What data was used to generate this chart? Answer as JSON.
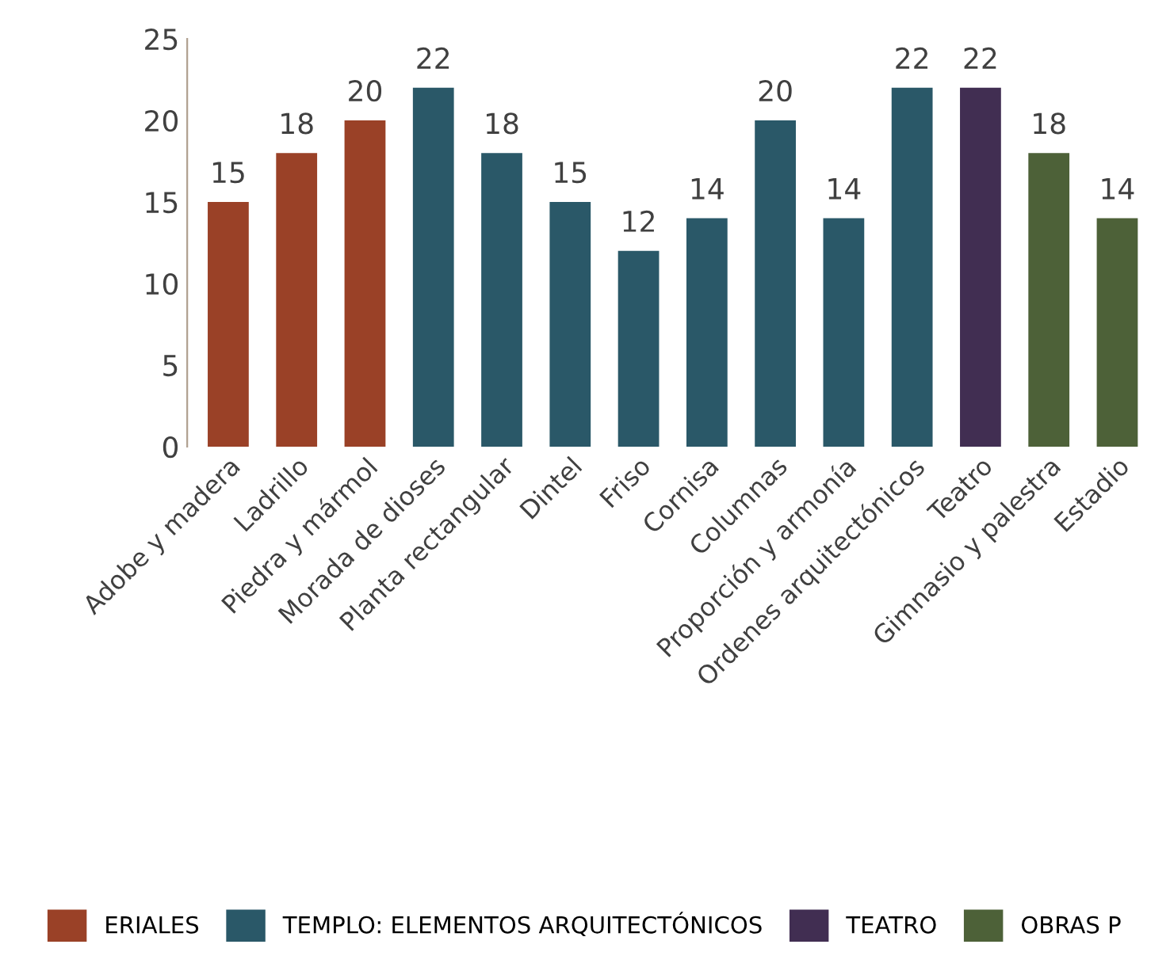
{
  "chart_data": {
    "type": "bar",
    "categories": [
      "Adobe y madera",
      "Ladrillo",
      "Piedra y mármol",
      "Morada de dioses",
      "Planta rectangular",
      "Dintel",
      "Friso",
      "Cornisa",
      "Columnas",
      "Proporción y armonía",
      "Ordenes arquitectónicos",
      "Teatro",
      "Gimnasio y palestra",
      "Estadio"
    ],
    "series": [
      {
        "name": "ERIALES",
        "color": "#9a4127",
        "values": [
          15,
          18,
          20,
          null,
          null,
          null,
          null,
          null,
          null,
          null,
          null,
          null,
          null,
          null
        ]
      },
      {
        "name": "TEMPLO: ELEMENTOS ARQUITECTÓNICOS",
        "color": "#2a5868",
        "values": [
          null,
          null,
          null,
          22,
          18,
          15,
          12,
          14,
          20,
          14,
          22,
          null,
          null,
          null
        ]
      },
      {
        "name": "TEATRO",
        "color": "#412e52",
        "values": [
          null,
          null,
          null,
          null,
          null,
          null,
          null,
          null,
          null,
          null,
          null,
          22,
          null,
          null
        ]
      },
      {
        "name": "OBRAS P",
        "color": "#4d6138",
        "values": [
          null,
          null,
          null,
          null,
          null,
          null,
          null,
          null,
          null,
          null,
          null,
          null,
          18,
          14
        ]
      }
    ],
    "ylim": [
      0,
      25
    ],
    "yticks": [
      0,
      5,
      10,
      15,
      20,
      25
    ],
    "grid": false,
    "legend": "bottom",
    "data_labels": true
  }
}
